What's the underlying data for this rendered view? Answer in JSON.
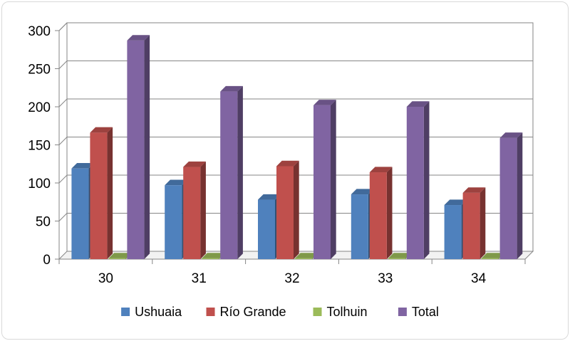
{
  "chart_data": {
    "type": "bar",
    "title": "",
    "xlabel": "",
    "ylabel": "",
    "categories": [
      "30",
      "31",
      "32",
      "33",
      "34"
    ],
    "ylim": [
      0,
      300
    ],
    "yticks": [
      0,
      50,
      100,
      150,
      200,
      250,
      300
    ],
    "grid": true,
    "legend_position": "bottom",
    "series": [
      {
        "name": "Ushuaia",
        "color": "#4f81bd",
        "values": [
          119,
          97,
          78,
          85,
          71
        ]
      },
      {
        "name": "Río Grande",
        "color": "#c0504d",
        "values": [
          166,
          121,
          122,
          114,
          87
        ]
      },
      {
        "name": "Tolhuin",
        "color": "#9bbb59",
        "values": [
          1,
          1,
          1,
          1,
          1
        ]
      },
      {
        "name": "Total",
        "color": "#8064a2",
        "values": [
          287,
          220,
          202,
          200,
          159
        ]
      }
    ]
  }
}
